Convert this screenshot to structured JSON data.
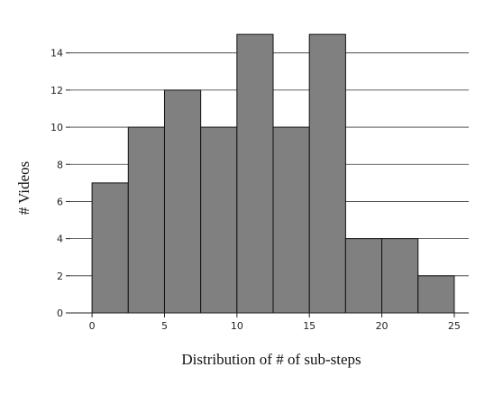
{
  "chart_data": {
    "type": "bar",
    "subtype": "histogram",
    "xlabel": "Distribution of # of sub-steps",
    "ylabel": "# Videos",
    "bin_edges": [
      0,
      2.5,
      5,
      7.5,
      10,
      12.5,
      15,
      17.5,
      20,
      22.5,
      25
    ],
    "values": [
      7,
      10,
      12,
      10,
      15,
      10,
      15,
      4,
      4,
      2
    ],
    "xlim": [
      -1.5,
      26
    ],
    "ylim": [
      0,
      15.2
    ],
    "xticks": [
      0,
      5,
      10,
      15,
      20,
      25
    ],
    "yticks": [
      0,
      2,
      4,
      6,
      8,
      10,
      12,
      14
    ],
    "grid": "horizontal",
    "colors": {
      "bar_fill": "#808080",
      "bar_edge": "#111111",
      "grid": "#333333"
    }
  }
}
